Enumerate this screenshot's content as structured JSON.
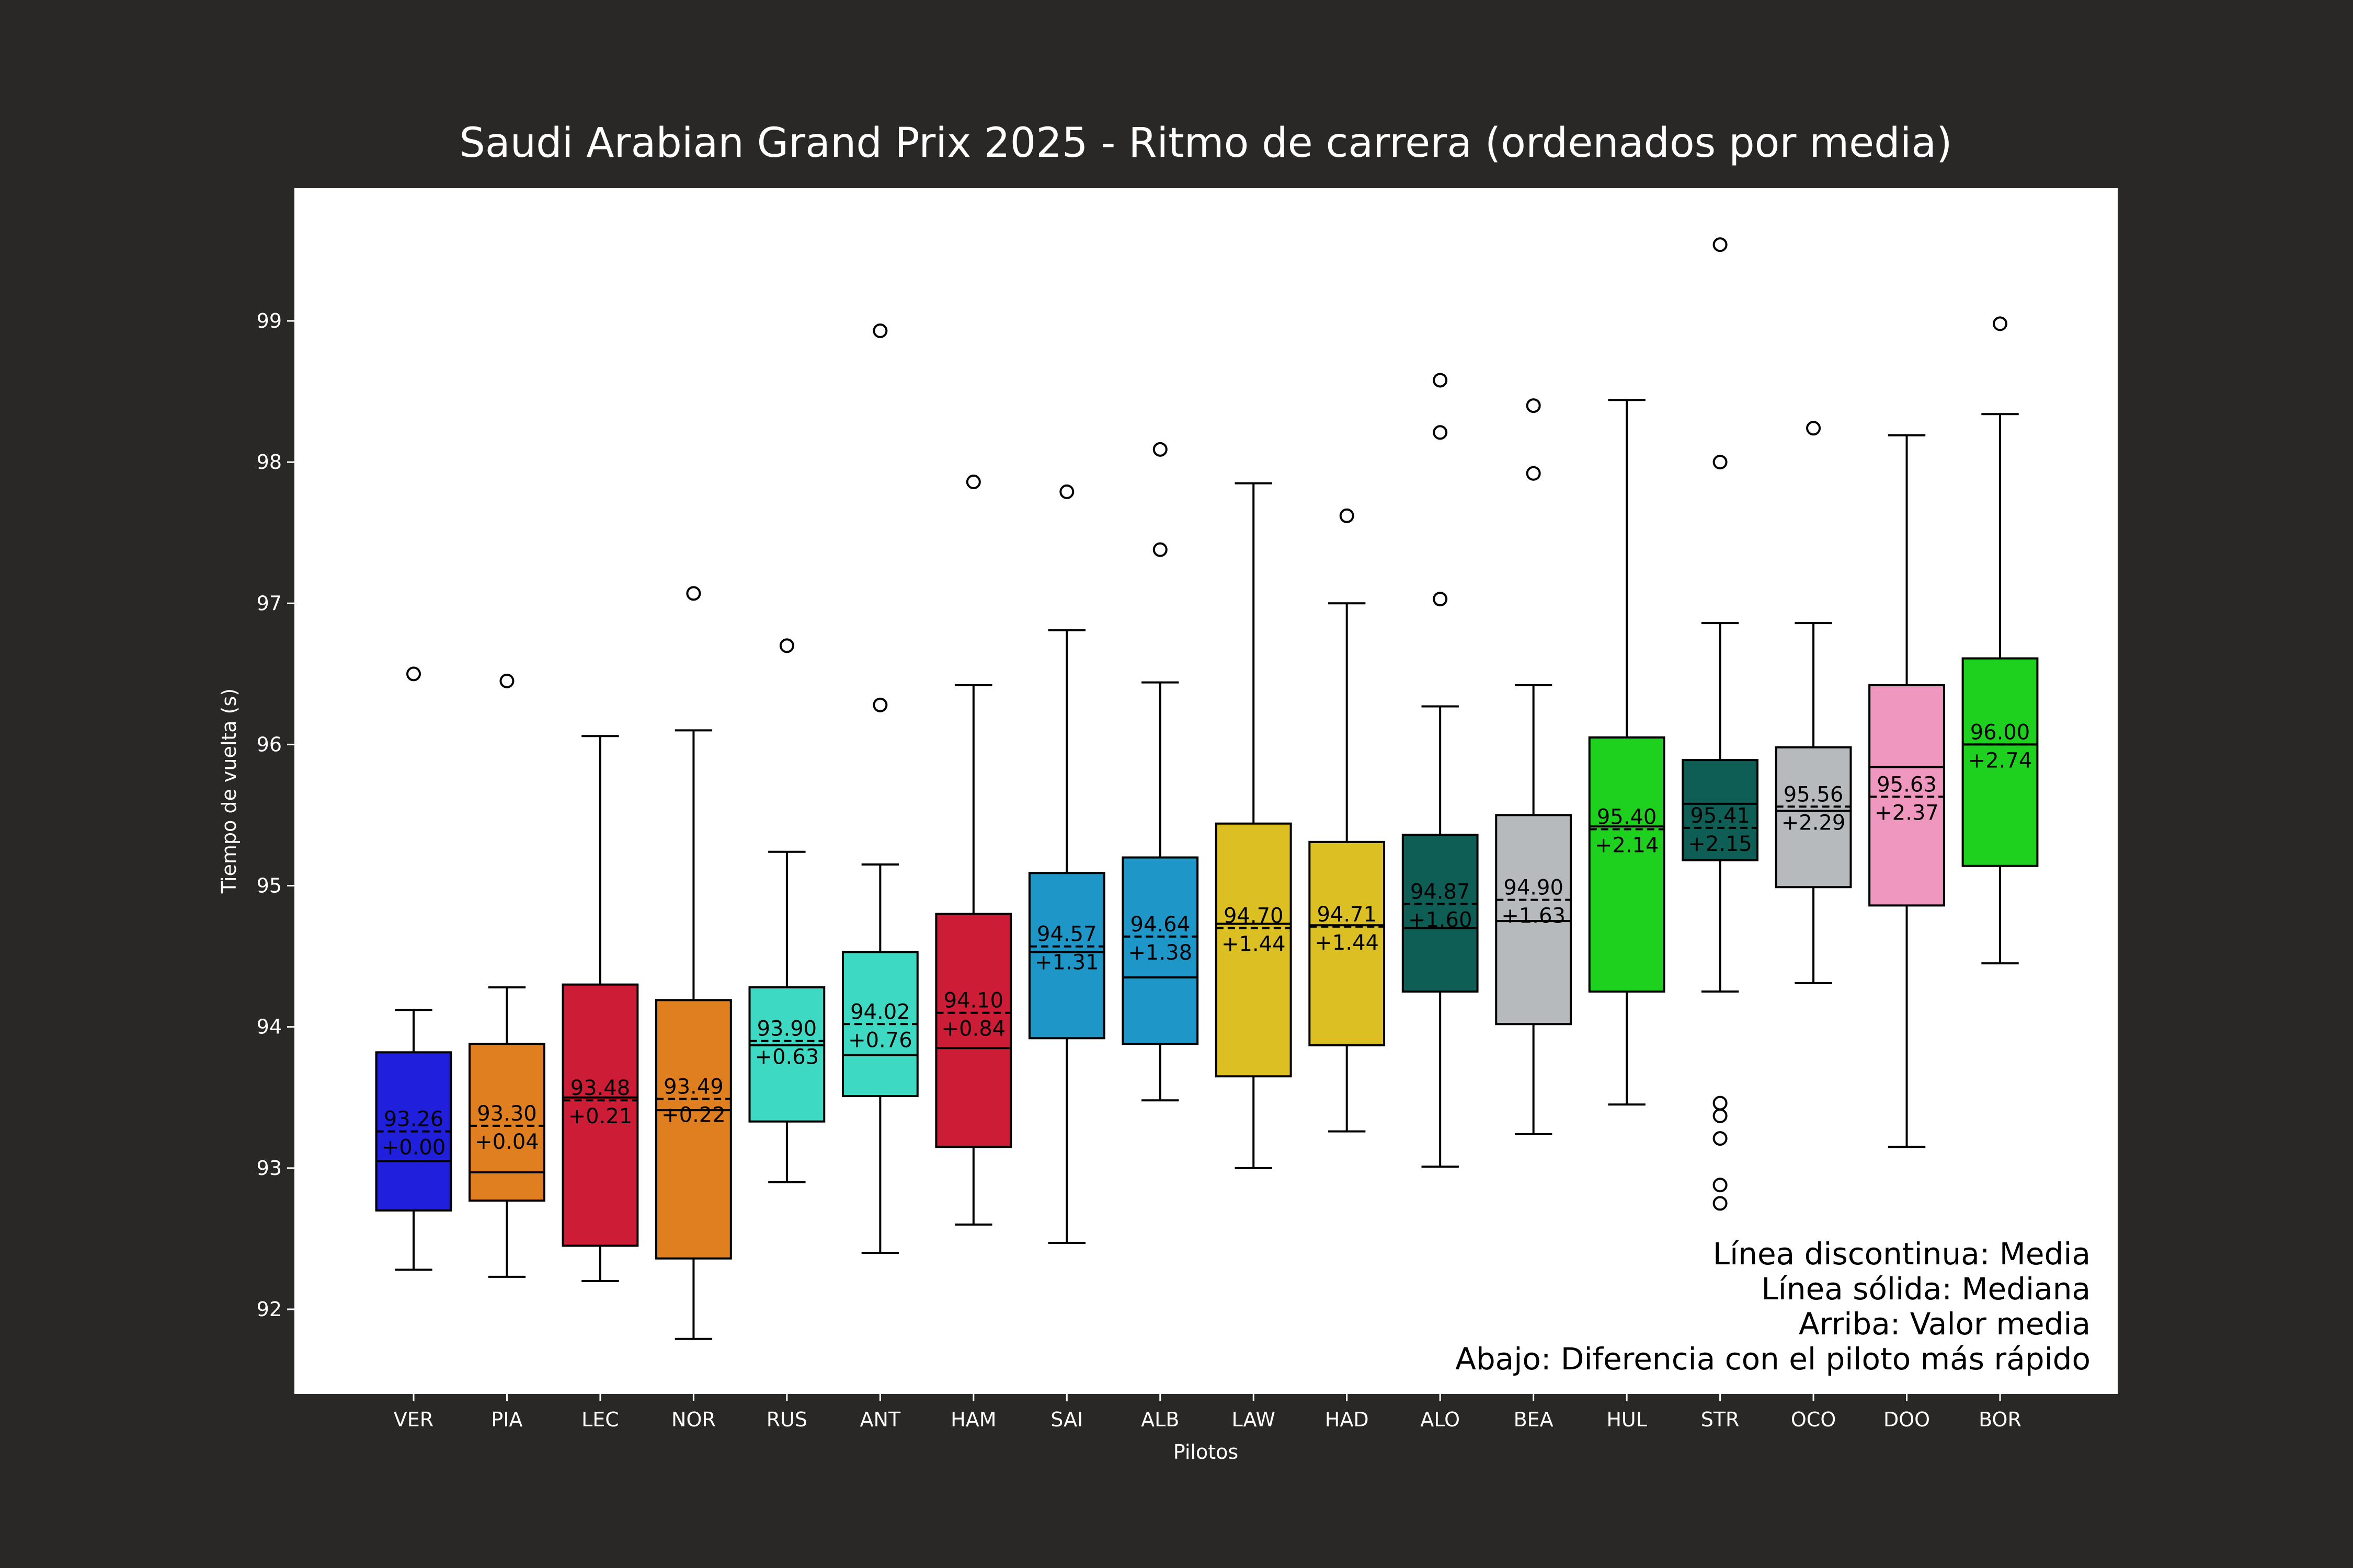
{
  "chart_data": {
    "type": "box",
    "title": "Saudi Arabian Grand Prix 2025 - Ritmo de carrera (ordenados por media)",
    "xlabel": "Pilotos",
    "ylabel": "Tiempo de vuelta (s)",
    "ylim": [
      91.4,
      99.9
    ],
    "yticks": [
      92,
      93,
      94,
      95,
      96,
      97,
      98,
      99
    ],
    "grid": false,
    "legend_text": [
      "Línea discontinua: Media",
      "Línea sólida: Mediana",
      "Arriba: Valor media",
      "Abajo: Diferencia con el piloto más rápido"
    ],
    "colors": {
      "figure_background": "#2a2727",
      "plot_background": "#ffffff",
      "text_light": "#ffffff",
      "text_dark": "#000000"
    },
    "drivers": [
      {
        "name": "VER",
        "color": "#2020dc",
        "whislo": 92.28,
        "q1": 92.7,
        "median": 93.05,
        "q3": 93.82,
        "whishi": 94.12,
        "mean": 93.26,
        "mean_label": "93.26",
        "diff_label": "+0.00",
        "fliers": [
          96.5
        ]
      },
      {
        "name": "PIA",
        "color": "#e07f1f",
        "whislo": 92.23,
        "q1": 92.77,
        "median": 92.97,
        "q3": 93.88,
        "whishi": 94.28,
        "mean": 93.3,
        "mean_label": "93.30",
        "diff_label": "+0.04",
        "fliers": [
          96.45
        ]
      },
      {
        "name": "LEC",
        "color": "#cd1c36",
        "whislo": 92.2,
        "q1": 92.45,
        "median": 93.5,
        "q3": 94.3,
        "whishi": 96.06,
        "mean": 93.48,
        "mean_label": "93.48",
        "diff_label": "+0.21",
        "fliers": []
      },
      {
        "name": "NOR",
        "color": "#e07f1f",
        "whislo": 91.79,
        "q1": 92.36,
        "median": 93.41,
        "q3": 94.19,
        "whishi": 96.1,
        "mean": 93.49,
        "mean_label": "93.49",
        "diff_label": "+0.22",
        "fliers": [
          97.07
        ]
      },
      {
        "name": "RUS",
        "color": "#3ed9c2",
        "whislo": 92.9,
        "q1": 93.33,
        "median": 93.87,
        "q3": 94.28,
        "whishi": 95.24,
        "mean": 93.9,
        "mean_label": "93.90",
        "diff_label": "+0.63",
        "fliers": [
          96.7
        ]
      },
      {
        "name": "ANT",
        "color": "#3ed9c2",
        "whislo": 92.4,
        "q1": 93.51,
        "median": 93.8,
        "q3": 94.53,
        "whishi": 95.15,
        "mean": 94.02,
        "mean_label": "94.02",
        "diff_label": "+0.76",
        "fliers": [
          96.28,
          98.93
        ]
      },
      {
        "name": "HAM",
        "color": "#cd1c36",
        "whislo": 92.6,
        "q1": 93.15,
        "median": 93.85,
        "q3": 94.8,
        "whishi": 96.42,
        "mean": 94.1,
        "mean_label": "94.10",
        "diff_label": "+0.84",
        "fliers": [
          97.86
        ]
      },
      {
        "name": "SAI",
        "color": "#1e96c8",
        "whislo": 92.47,
        "q1": 93.92,
        "median": 94.53,
        "q3": 95.09,
        "whishi": 96.81,
        "mean": 94.57,
        "mean_label": "94.57",
        "diff_label": "+1.31",
        "fliers": [
          97.79
        ]
      },
      {
        "name": "ALB",
        "color": "#1e96c8",
        "whislo": 93.48,
        "q1": 93.88,
        "median": 94.35,
        "q3": 95.2,
        "whishi": 96.44,
        "mean": 94.64,
        "mean_label": "94.64",
        "diff_label": "+1.38",
        "fliers": [
          97.38,
          98.09
        ]
      },
      {
        "name": "LAW",
        "color": "#dcc023",
        "whislo": 93.0,
        "q1": 93.65,
        "median": 94.73,
        "q3": 95.44,
        "whishi": 97.85,
        "mean": 94.7,
        "mean_label": "94.70",
        "diff_label": "+1.44",
        "fliers": []
      },
      {
        "name": "HAD",
        "color": "#dcc023",
        "whislo": 93.26,
        "q1": 93.87,
        "median": 94.72,
        "q3": 95.31,
        "whishi": 97.0,
        "mean": 94.71,
        "mean_label": "94.71",
        "diff_label": "+1.44",
        "fliers": [
          97.62
        ]
      },
      {
        "name": "ALO",
        "color": "#0e5e56",
        "whislo": 93.01,
        "q1": 94.25,
        "median": 94.7,
        "q3": 95.36,
        "whishi": 96.27,
        "mean": 94.87,
        "mean_label": "94.87",
        "diff_label": "+1.60",
        "fliers": [
          97.03,
          98.21,
          98.58
        ]
      },
      {
        "name": "BEA",
        "color": "#b6babd",
        "whislo": 93.24,
        "q1": 94.02,
        "median": 94.75,
        "q3": 95.5,
        "whishi": 96.42,
        "mean": 94.9,
        "mean_label": "94.90",
        "diff_label": "+1.63",
        "fliers": [
          97.92,
          98.4
        ]
      },
      {
        "name": "HUL",
        "color": "#1fd11f",
        "whislo": 93.45,
        "q1": 94.25,
        "median": 95.42,
        "q3": 96.05,
        "whishi": 98.44,
        "mean": 95.4,
        "mean_label": "95.40",
        "diff_label": "+2.14",
        "fliers": []
      },
      {
        "name": "STR",
        "color": "#0e5e56",
        "whislo": 94.25,
        "q1": 95.18,
        "median": 95.58,
        "q3": 95.89,
        "whishi": 96.86,
        "mean": 95.41,
        "mean_label": "95.41",
        "diff_label": "+2.15",
        "fliers": [
          92.75,
          92.88,
          93.21,
          93.37,
          93.46,
          98.0,
          99.54
        ]
      },
      {
        "name": "OCO",
        "color": "#b6babd",
        "whislo": 94.31,
        "q1": 94.99,
        "median": 95.53,
        "q3": 95.98,
        "whishi": 96.86,
        "mean": 95.56,
        "mean_label": "95.56",
        "diff_label": "+2.29",
        "fliers": [
          98.24
        ]
      },
      {
        "name": "DOO",
        "color": "#ef97bf",
        "whislo": 93.15,
        "q1": 94.86,
        "median": 95.84,
        "q3": 96.42,
        "whishi": 98.19,
        "mean": 95.63,
        "mean_label": "95.63",
        "diff_label": "+2.37",
        "fliers": []
      },
      {
        "name": "BOR",
        "color": "#1fd11f",
        "whislo": 94.45,
        "q1": 95.14,
        "median": 96.0,
        "q3": 96.61,
        "whishi": 98.34,
        "mean": 96.0,
        "mean_label": "96.00",
        "diff_label": "+2.74",
        "fliers": [
          98.98
        ]
      }
    ]
  }
}
